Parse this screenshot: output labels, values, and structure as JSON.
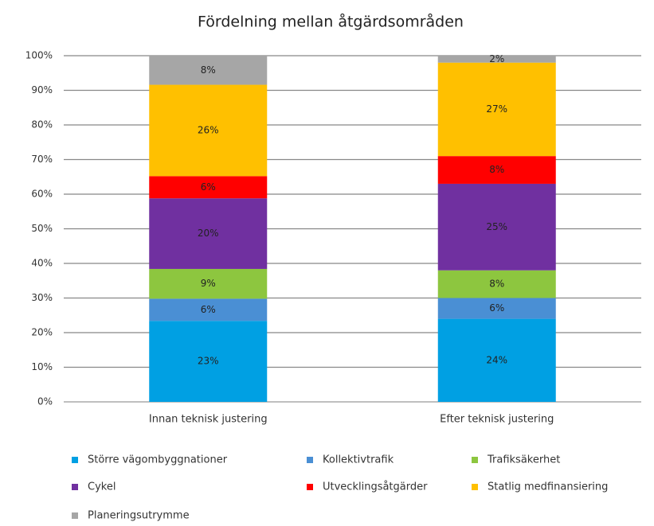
{
  "chart_data": {
    "type": "stacked_bar",
    "title": "Fördelning mellan åtgärdsområden",
    "categories": [
      "Innan teknisk justering",
      "Efter teknisk justering"
    ],
    "series": [
      {
        "name": "Större vägombyggnationer",
        "color": "#00a0e3",
        "values": [
          23.4,
          24
        ],
        "value_labels": [
          "23%",
          "24%"
        ]
      },
      {
        "name": "Kollektivtrafik",
        "color": "#4a8fd4",
        "values": [
          6.4,
          6
        ],
        "value_labels": [
          "6%",
          "6%"
        ]
      },
      {
        "name": "Trafiksäkerhet",
        "color": "#8dc63f",
        "values": [
          8.6,
          8
        ],
        "value_labels": [
          "9%",
          "8%"
        ]
      },
      {
        "name": "Cykel",
        "color": "#7030a0",
        "values": [
          20.4,
          25
        ],
        "value_labels": [
          "20%",
          "25%"
        ]
      },
      {
        "name": "Utvecklingsåtgärder",
        "color": "#ff0000",
        "values": [
          6.4,
          8
        ],
        "value_labels": [
          "6%",
          "8%"
        ]
      },
      {
        "name": "Statlig medfinansiering",
        "color": "#ffc000",
        "values": [
          26.4,
          27
        ],
        "value_labels": [
          "26%",
          "27%"
        ]
      },
      {
        "name": "Planeringsutrymme",
        "color": "#a6a6a6",
        "values": [
          8.4,
          2
        ],
        "value_labels": [
          "8%",
          "2%"
        ]
      }
    ],
    "ylim": [
      0,
      100
    ],
    "yticks": [
      {
        "value": 0,
        "label": "0%"
      },
      {
        "value": 10,
        "label": "10%"
      },
      {
        "value": 20,
        "label": "20%"
      },
      {
        "value": 30,
        "label": "30%"
      },
      {
        "value": 40,
        "label": "40%"
      },
      {
        "value": 50,
        "label": "50%"
      },
      {
        "value": 60,
        "label": "60%"
      },
      {
        "value": 70,
        "label": "70%"
      },
      {
        "value": 80,
        "label": "80%"
      },
      {
        "value": 90,
        "label": "90%"
      },
      {
        "value": 100,
        "label": "100%"
      }
    ],
    "grid": true,
    "legend": "bottom"
  }
}
